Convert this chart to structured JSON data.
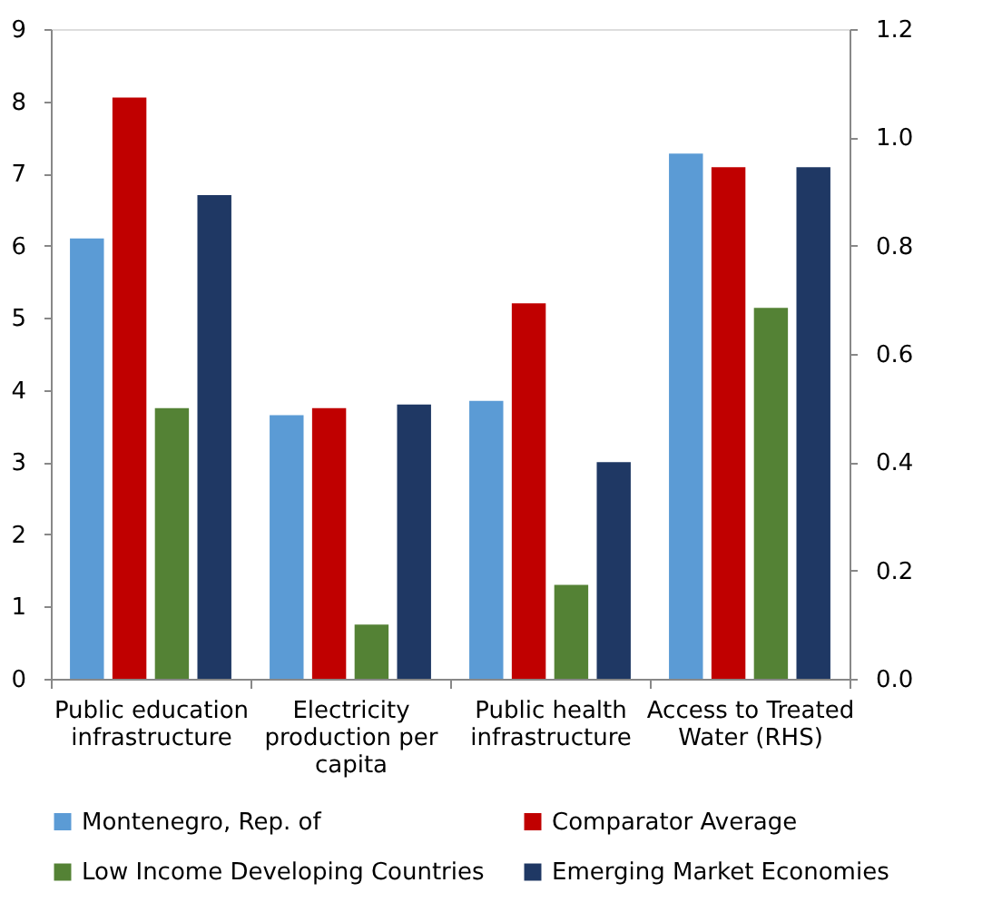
{
  "chart_data": {
    "type": "bar",
    "categories": [
      "Public education infrastructure",
      "Electricity production per capita",
      "Public health infrastructure",
      "Access to Treated Water (RHS)"
    ],
    "series": [
      {
        "name": "Montenegro, Rep. of",
        "color": "#5b9bd5",
        "values": [
          6.1,
          3.65,
          3.85,
          null
        ]
      },
      {
        "name": "Comparator Average",
        "color": "#c00000",
        "values": [
          8.05,
          3.75,
          5.2,
          null
        ]
      },
      {
        "name": "Low Income Developing Countries",
        "color": "#548235",
        "values": [
          3.75,
          0.75,
          1.3,
          null
        ]
      },
      {
        "name": "Emerging Market Economies",
        "color": "#1f3864",
        "values": [
          6.7,
          3.8,
          3.0,
          null
        ]
      },
      {
        "color": "#5b9bd5",
        "values": [
          null,
          null,
          null,
          0.97
        ],
        "axis": "y2"
      },
      {
        "color": "#c00000",
        "values": [
          null,
          null,
          null,
          0.945
        ],
        "axis": "y2"
      },
      {
        "color": "#548235",
        "values": [
          null,
          null,
          null,
          0.685
        ],
        "axis": "y2"
      },
      {
        "color": "#1f3864",
        "values": [
          null,
          null,
          null,
          0.945
        ],
        "axis": "y2"
      }
    ],
    "ylim": [
      0,
      9
    ],
    "yticks": [
      0,
      1,
      2,
      3,
      4,
      5,
      6,
      7,
      8,
      9
    ],
    "y2lim": [
      0,
      1.2
    ],
    "y2ticks": [
      {
        "value": 0,
        "label": "0.0"
      },
      {
        "value": 0.2,
        "label": "0.2"
      },
      {
        "value": 0.4,
        "label": "0.4"
      },
      {
        "value": 0.6,
        "label": "0.6"
      },
      {
        "value": 0.8,
        "label": "0.8"
      },
      {
        "value": 1,
        "label": "1.0"
      },
      {
        "value": 1.2,
        "label": "1.2"
      }
    ],
    "grid": false,
    "legend": "bottom"
  }
}
